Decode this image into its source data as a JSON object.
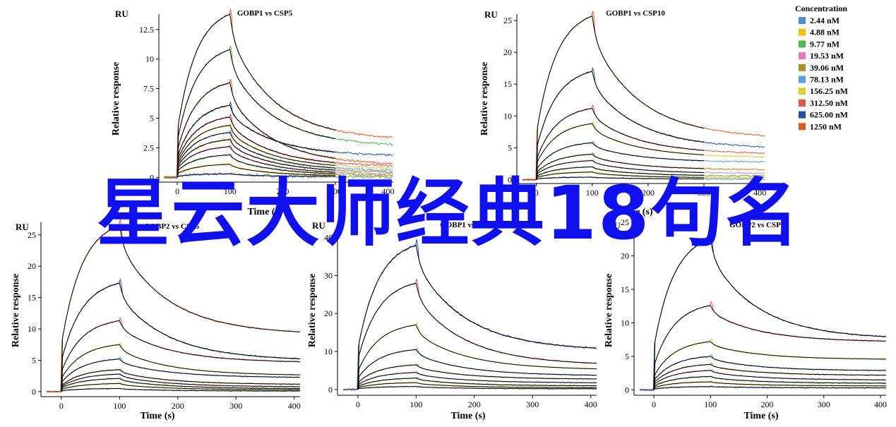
{
  "overlay": {
    "text": "星云大师经典18句名"
  },
  "legend": {
    "title": "Concentration",
    "entries": [
      {
        "label": "2.44 nM",
        "color": "#4f8fcf"
      },
      {
        "label": "4.88 nM",
        "color": "#f5c200"
      },
      {
        "label": "9.77 nM",
        "color": "#4cb84c"
      },
      {
        "label": "19.53 nM",
        "color": "#e878b8"
      },
      {
        "label": "39.06 nM",
        "color": "#a89030"
      },
      {
        "label": "78.13 nM",
        "color": "#5a9ed8"
      },
      {
        "label": "156.25 nM",
        "color": "#dcd030"
      },
      {
        "label": "312.50 nM",
        "color": "#e85050"
      },
      {
        "label": "625.00 nM",
        "color": "#2050a0"
      },
      {
        "label": "1250 nM",
        "color": "#e05a20"
      }
    ]
  },
  "chart_data": [
    {
      "type": "line",
      "title": "GOBP1 vs CSP5",
      "unit": "RU",
      "ylabel": "Relative response",
      "xlabel": "Time (s)",
      "xlim": [
        -35,
        410
      ],
      "ylim": [
        -0.4,
        13.8
      ],
      "xticks": [
        0,
        100,
        200,
        300,
        400
      ],
      "yticks": [
        "0",
        "2.5",
        "5",
        "7.5",
        "10",
        "12.5"
      ],
      "ytick_values": [
        0,
        2.5,
        5,
        7.5,
        10,
        12.5
      ],
      "injection_end": 100,
      "fit_end_t": 300,
      "curves": [
        {
          "plateau": 0.3,
          "dissoc_end": 0.05,
          "noise": 0.12
        },
        {
          "plateau": 1.1,
          "dissoc_end": 0.1,
          "noise": 0.08
        },
        {
          "plateau": 1.9,
          "dissoc_end": 0.2,
          "noise": 0.08
        },
        {
          "plateau": 2.6,
          "dissoc_end": 0.3,
          "noise": 0.08
        },
        {
          "plateau": 3.2,
          "dissoc_end": 0.45,
          "noise": 0.08
        },
        {
          "plateau": 3.8,
          "dissoc_end": 0.6,
          "noise": 0.08
        },
        {
          "plateau": 4.4,
          "dissoc_end": 0.8,
          "noise": 0.08
        },
        {
          "plateau": 5.1,
          "dissoc_end": 1.0,
          "noise": 0.08
        },
        {
          "plateau": 6.1,
          "dissoc_end": 1.9,
          "noise": 0.08
        },
        {
          "plateau": 8.0,
          "dissoc_end": 1.2,
          "noise": 0.08
        },
        {
          "plateau": 10.8,
          "dissoc_end": 2.8,
          "noise": 0.08
        },
        {
          "plateau": 13.8,
          "dissoc_end": 3.4,
          "noise": 0.08
        }
      ]
    },
    {
      "type": "line",
      "title": "GOBP1 vs CSP10",
      "unit": "RU",
      "ylabel": "Relative response",
      "xlabel": "Time (s)",
      "xlim": [
        -35,
        410
      ],
      "ylim": [
        -0.6,
        26
      ],
      "xticks": [
        0,
        100,
        200,
        300,
        400
      ],
      "yticks": [
        "0",
        "5",
        "10",
        "15",
        "20",
        "25"
      ],
      "ytick_values": [
        0,
        5,
        10,
        15,
        20,
        25
      ],
      "injection_end": 100,
      "fit_end_t": 300,
      "curves": [
        {
          "plateau": 0.4,
          "dissoc_end": 0.1,
          "noise": 0.1
        },
        {
          "plateau": 1.2,
          "dissoc_end": 0.3,
          "noise": 0.1
        },
        {
          "plateau": 2.0,
          "dissoc_end": 0.6,
          "noise": 0.1
        },
        {
          "plateau": 3.0,
          "dissoc_end": 1.0,
          "noise": 0.1
        },
        {
          "plateau": 4.0,
          "dissoc_end": 1.6,
          "noise": 0.1
        },
        {
          "plateau": 5.8,
          "dissoc_end": 2.8,
          "noise": 0.1
        },
        {
          "plateau": 8.8,
          "dissoc_end": 3.6,
          "noise": 0.1
        },
        {
          "plateau": 11.2,
          "dissoc_end": 4.2,
          "noise": 0.1
        },
        {
          "plateau": 17.0,
          "dissoc_end": 5.2,
          "noise": 0.1
        },
        {
          "plateau": 25.7,
          "dissoc_end": 7.0,
          "noise": 0.1
        }
      ]
    },
    {
      "type": "line",
      "title": "GOBP2 vs CSP5",
      "unit": "RU",
      "ylabel": "Relative response",
      "xlabel": "Time (s)",
      "xlim": [
        -35,
        410
      ],
      "ylim": [
        -0.8,
        27
      ],
      "xticks": [
        0,
        100,
        200,
        300,
        400
      ],
      "yticks": [
        "0",
        "5",
        "10",
        "15",
        "20",
        "25"
      ],
      "ytick_values": [
        0,
        5,
        10,
        15,
        20,
        25
      ],
      "injection_end": 100,
      "fit_end_t": 410,
      "curves": [
        {
          "plateau": 0.5,
          "dissoc_end": 0.1,
          "noise": 0.1
        },
        {
          "plateau": 1.3,
          "dissoc_end": 0.3,
          "noise": 0.1
        },
        {
          "plateau": 2.1,
          "dissoc_end": 0.5,
          "noise": 0.1
        },
        {
          "plateau": 2.8,
          "dissoc_end": 0.8,
          "noise": 0.1
        },
        {
          "plateau": 3.5,
          "dissoc_end": 1.2,
          "noise": 0.1
        },
        {
          "plateau": 5.2,
          "dissoc_end": 2.3,
          "noise": 0.1
        },
        {
          "plateau": 7.5,
          "dissoc_end": 2.7,
          "noise": 0.1
        },
        {
          "plateau": 11.3,
          "dissoc_end": 4.8,
          "noise": 0.1
        },
        {
          "plateau": 17.3,
          "dissoc_end": 5.3,
          "noise": 0.1
        },
        {
          "plateau": 26.5,
          "dissoc_end": 9.6,
          "noise": 0.1
        }
      ]
    },
    {
      "type": "line",
      "title": "GOBP1 vs CSP10",
      "unit": "RU",
      "ylabel": "Relative response",
      "xlabel": "Time (s)",
      "xlim": [
        -35,
        410
      ],
      "ylim": [
        -1.5,
        44
      ],
      "xticks": [
        0,
        100,
        200,
        300,
        400
      ],
      "yticks": [
        "0",
        "10",
        "20",
        "30",
        "40"
      ],
      "ytick_values": [
        0,
        10,
        20,
        30,
        40
      ],
      "injection_end": 100,
      "fit_end_t": 410,
      "curves": [
        {
          "plateau": 0.8,
          "dissoc_end": 0.2,
          "noise": 0.15
        },
        {
          "plateau": 1.8,
          "dissoc_end": 0.5,
          "noise": 0.15
        },
        {
          "plateau": 3.0,
          "dissoc_end": 1.0,
          "noise": 0.15
        },
        {
          "plateau": 4.5,
          "dissoc_end": 1.8,
          "noise": 0.15
        },
        {
          "plateau": 6.5,
          "dissoc_end": 2.8,
          "noise": 0.15
        },
        {
          "plateau": 10.5,
          "dissoc_end": 3.8,
          "noise": 0.15
        },
        {
          "plateau": 17.0,
          "dissoc_end": 5.5,
          "noise": 0.15
        },
        {
          "plateau": 28.0,
          "dissoc_end": 7.0,
          "noise": 0.15
        },
        {
          "plateau": 38.0,
          "dissoc_end": 11.0,
          "noise": 0.15
        }
      ]
    },
    {
      "type": "line",
      "title": "GOBP2 vs CSP17",
      "unit": "RU",
      "ylabel": "Relative response",
      "xlabel": "Time (s)",
      "xlim": [
        -35,
        410
      ],
      "ylim": [
        -0.8,
        25
      ],
      "xticks": [
        0,
        100,
        200,
        300,
        400
      ],
      "yticks": [
        "0",
        "5",
        "10",
        "15",
        "20",
        "25"
      ],
      "ytick_values": [
        0,
        5,
        10,
        15,
        20,
        25
      ],
      "injection_end": 100,
      "fit_end_t": 410,
      "curves": [
        {
          "plateau": 0.5,
          "dissoc_end": 0.3,
          "noise": 0.1
        },
        {
          "plateau": 1.2,
          "dissoc_end": 0.6,
          "noise": 0.1
        },
        {
          "plateau": 2.0,
          "dissoc_end": 1.0,
          "noise": 0.1
        },
        {
          "plateau": 2.9,
          "dissoc_end": 1.5,
          "noise": 0.1
        },
        {
          "plateau": 3.8,
          "dissoc_end": 2.2,
          "noise": 0.1
        },
        {
          "plateau": 5.0,
          "dissoc_end": 2.9,
          "noise": 0.1
        },
        {
          "plateau": 7.2,
          "dissoc_end": 4.6,
          "noise": 0.1
        },
        {
          "plateau": 12.6,
          "dissoc_end": 7.3,
          "noise": 0.1
        },
        {
          "plateau": 22.5,
          "dissoc_end": 8.0,
          "noise": 0.1
        }
      ]
    }
  ]
}
